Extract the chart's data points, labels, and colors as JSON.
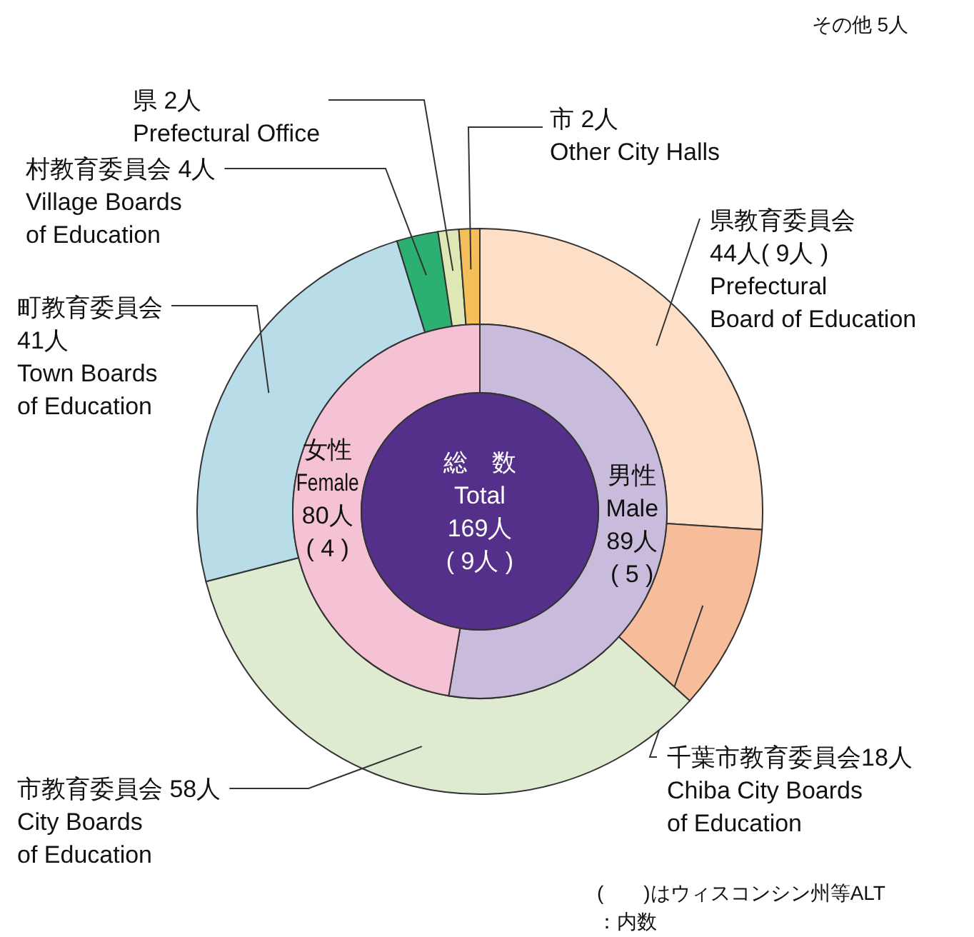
{
  "chart_data": [
    {
      "type": "donut",
      "categories": [
        "県教育委員会\n44人( 9人 )\nPrefectural\nBoard of Education",
        "千葉市教育委員会18人\nChiba City Boards\nof Education",
        "市教育委員会 58人\nCity Boards\nof Education",
        "町教育委員会\n41人\nTown Boards\nof Education",
        "村教育委員会 4人\nVillage Boards\nof Education",
        "県 2人\nPrefectural Office",
        "市 2人\nOther City Halls"
      ],
      "values": [
        44,
        18,
        58,
        41,
        4,
        2,
        2
      ],
      "colors": [
        "#fcdfc6",
        "#f7bd9b",
        "#dfebd0",
        "#b9dce9",
        "#2bb071",
        "#dde8b4",
        "#f5bf5a"
      ],
      "annotations": [
        "その他 5人",
        "(　　)はウィスコンシン州等ALT\n：内数"
      ]
    },
    {
      "type": "donut",
      "categories": [
        "男性\nMale\n89人\n( 5 )",
        "女性\nFemale\n80人\n( 4 )"
      ],
      "values": [
        89,
        80
      ],
      "colors": [
        "#c9bbdb",
        "#f5c1d5"
      ],
      "annotations": [
        "総　数\nTotal\n169人\n( 9人 )"
      ]
    }
  ]
}
